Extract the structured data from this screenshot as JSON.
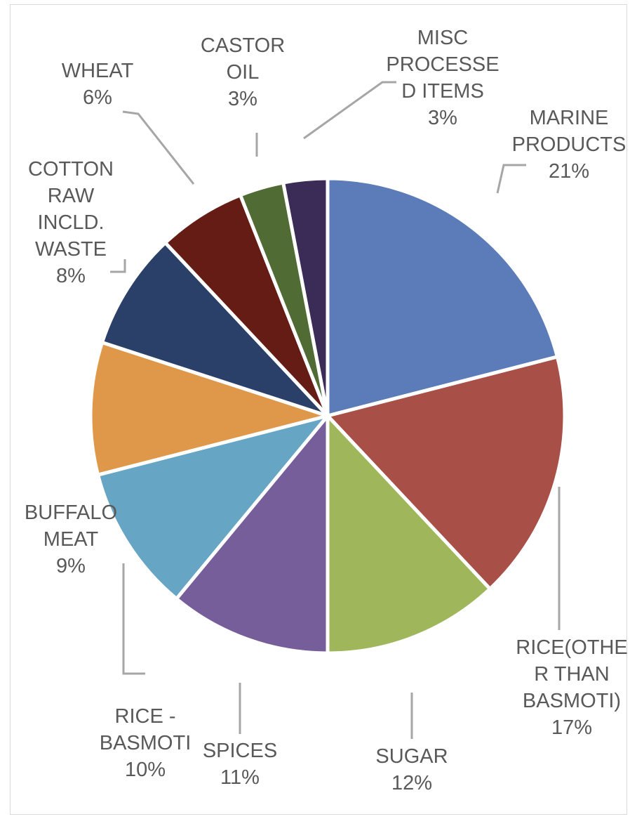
{
  "chart_data": {
    "type": "pie",
    "title": "",
    "slices": [
      {
        "label": [
          "MARINE",
          "PRODUCTS"
        ],
        "value": 21,
        "value_label": "21%",
        "color": "#5b7cb8"
      },
      {
        "label": [
          "RICE(OTHE",
          "R THAN",
          "BASMOTI)"
        ],
        "value": 17,
        "value_label": "17%",
        "color": "#a84f47"
      },
      {
        "label": [
          "SUGAR"
        ],
        "value": 12,
        "value_label": "12%",
        "color": "#9fb75a"
      },
      {
        "label": [
          "SPICES"
        ],
        "value": 11,
        "value_label": "11%",
        "color": "#765e9b"
      },
      {
        "label": [
          "RICE -",
          "BASMOTI"
        ],
        "value": 10,
        "value_label": "10%",
        "color": "#66a5c3"
      },
      {
        "label": [
          "BUFFALO",
          "MEAT"
        ],
        "value": 9,
        "value_label": "9%",
        "color": "#df9849"
      },
      {
        "label": [
          "COTTON",
          "RAW",
          "INCLD.",
          "WASTE"
        ],
        "value": 8,
        "value_label": "8%",
        "color": "#2b4069"
      },
      {
        "label": [
          "WHEAT"
        ],
        "value": 6,
        "value_label": "6%",
        "color": "#641c15"
      },
      {
        "label": [
          "CASTOR",
          "OIL"
        ],
        "value": 3,
        "value_label": "3%",
        "color": "#506b34"
      },
      {
        "label": [
          "MISC",
          "PROCESSE",
          "D ITEMS"
        ],
        "value": 3,
        "value_label": "3%",
        "color": "#3a2b57"
      }
    ],
    "start_angle_deg": 0,
    "direction": "clockwise",
    "legend": "none",
    "data_labels": "outside-with-leader-lines"
  }
}
